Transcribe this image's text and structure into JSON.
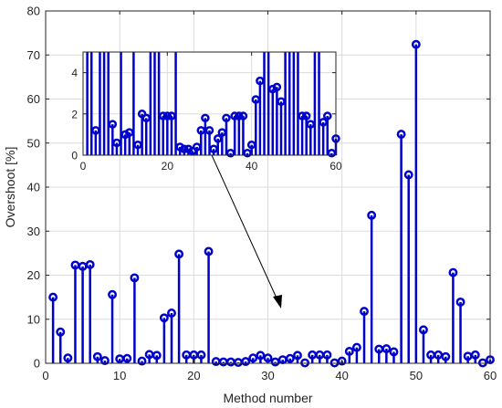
{
  "chart_data": {
    "type": "stem",
    "title": "",
    "xlabel": "Method number",
    "ylabel": "Overshoot [%]",
    "xlim": [
      0,
      60
    ],
    "ylim": [
      0,
      80
    ],
    "xticks": [
      0,
      10,
      20,
      30,
      40,
      50,
      60
    ],
    "yticks": [
      0,
      10,
      20,
      30,
      40,
      50,
      60,
      70,
      80
    ],
    "grid": true,
    "color": "#0000cc",
    "x": [
      1,
      2,
      3,
      4,
      5,
      6,
      7,
      8,
      9,
      10,
      11,
      12,
      13,
      14,
      15,
      16,
      17,
      18,
      19,
      20,
      21,
      22,
      23,
      24,
      25,
      26,
      27,
      28,
      29,
      30,
      31,
      32,
      33,
      34,
      35,
      36,
      37,
      38,
      39,
      40,
      41,
      42,
      43,
      44,
      45,
      46,
      47,
      48,
      49,
      50,
      51,
      52,
      53,
      54,
      55,
      56,
      57,
      58,
      59,
      60
    ],
    "y": [
      15.0,
      7.1,
      1.2,
      22.3,
      22.0,
      22.4,
      1.5,
      0.6,
      15.6,
      1.0,
      1.1,
      19.4,
      0.5,
      2.0,
      1.8,
      10.3,
      11.4,
      24.8,
      1.9,
      1.9,
      1.9,
      25.4,
      0.4,
      0.3,
      0.3,
      0.2,
      0.4,
      1.2,
      1.8,
      1.2,
      0.3,
      0.8,
      1.1,
      1.8,
      0.1,
      1.9,
      1.9,
      1.9,
      0.1,
      0.5,
      2.7,
      3.6,
      11.8,
      33.6,
      3.2,
      3.3,
      2.6,
      52.0,
      42.8,
      72.4,
      7.6,
      1.9,
      1.9,
      1.5,
      20.6,
      13.9,
      1.6,
      1.9,
      0.1,
      0.8
    ],
    "inset": {
      "xlim": [
        0,
        60
      ],
      "ylim": [
        0,
        5
      ],
      "xticks": [
        0,
        20,
        40,
        60
      ],
      "yticks": [
        0,
        2,
        4
      ]
    }
  }
}
